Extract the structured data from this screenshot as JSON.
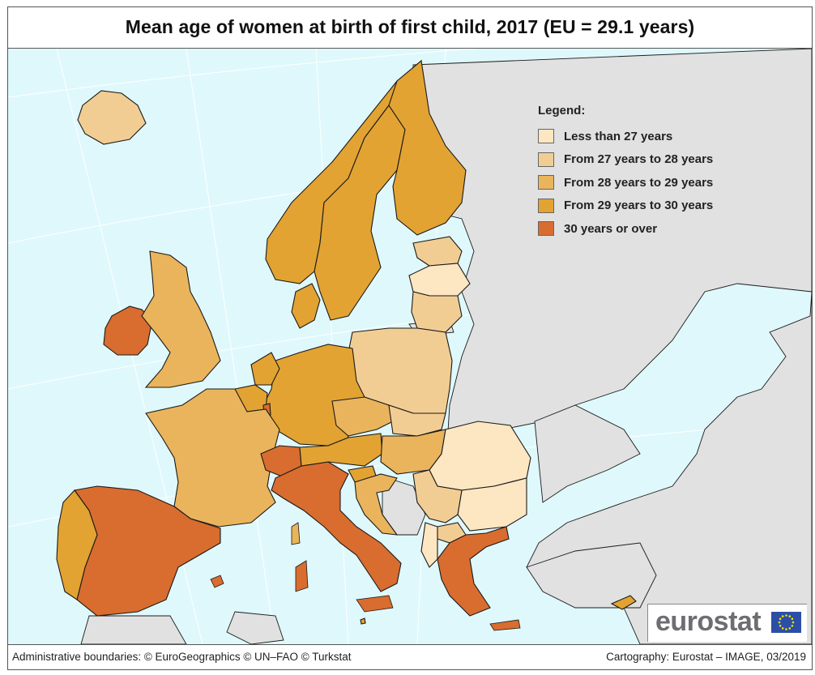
{
  "title": "Mean age of women at birth of first child, 2017 (EU = 29.1 years)",
  "legend": {
    "title": "Legend:",
    "items": [
      {
        "label": "Less than 27 years",
        "color": "#fde6c2"
      },
      {
        "label": "From 27 years to 28 years",
        "color": "#f2cd93"
      },
      {
        "label": "From 28 years to 29 years",
        "color": "#e9b45c"
      },
      {
        "label": "From 29 years to 30 years",
        "color": "#e2a333"
      },
      {
        "label": "30 years or over",
        "color": "#d96c2f"
      }
    ]
  },
  "colors": {
    "sea": "#dff8fb",
    "non_eu_land": "#e1e1e1",
    "border": "#1a1a1a",
    "graticule": "#ffffff"
  },
  "footer": {
    "left": "Administrative boundaries: © EuroGeographics © UN–FAO © Turkstat",
    "right": "Cartography: Eurostat – IMAGE, 03/2019"
  },
  "logo": {
    "text": "eurostat"
  },
  "regions": [
    {
      "name": "Iceland",
      "class": 1
    },
    {
      "name": "Ireland",
      "class": 4
    },
    {
      "name": "United Kingdom",
      "class": 2
    },
    {
      "name": "Norway",
      "class": 3
    },
    {
      "name": "Sweden",
      "class": 3
    },
    {
      "name": "Finland",
      "class": 3
    },
    {
      "name": "Estonia",
      "class": 1
    },
    {
      "name": "Latvia",
      "class": 0
    },
    {
      "name": "Lithuania",
      "class": 1
    },
    {
      "name": "Poland",
      "class": 1
    },
    {
      "name": "Germany",
      "class": 3
    },
    {
      "name": "Denmark",
      "class": 3
    },
    {
      "name": "Netherlands",
      "class": 3
    },
    {
      "name": "Belgium",
      "class": 3
    },
    {
      "name": "Luxembourg",
      "class": 4
    },
    {
      "name": "France",
      "class": 2
    },
    {
      "name": "Spain",
      "class": 4
    },
    {
      "name": "Portugal",
      "class": 3
    },
    {
      "name": "Switzerland",
      "class": 4
    },
    {
      "name": "Italy",
      "class": 4
    },
    {
      "name": "Austria",
      "class": 3
    },
    {
      "name": "Czechia",
      "class": 2
    },
    {
      "name": "Slovakia",
      "class": 1
    },
    {
      "name": "Hungary",
      "class": 2
    },
    {
      "name": "Slovenia",
      "class": 3
    },
    {
      "name": "Croatia",
      "class": 2
    },
    {
      "name": "Romania",
      "class": 0
    },
    {
      "name": "Bulgaria",
      "class": 0
    },
    {
      "name": "Serbia",
      "class": 1
    },
    {
      "name": "North Macedonia",
      "class": 1
    },
    {
      "name": "Albania",
      "class": 0
    },
    {
      "name": "Greece",
      "class": 4
    },
    {
      "name": "Cyprus",
      "class": 3
    },
    {
      "name": "Malta",
      "class": 3
    }
  ]
}
